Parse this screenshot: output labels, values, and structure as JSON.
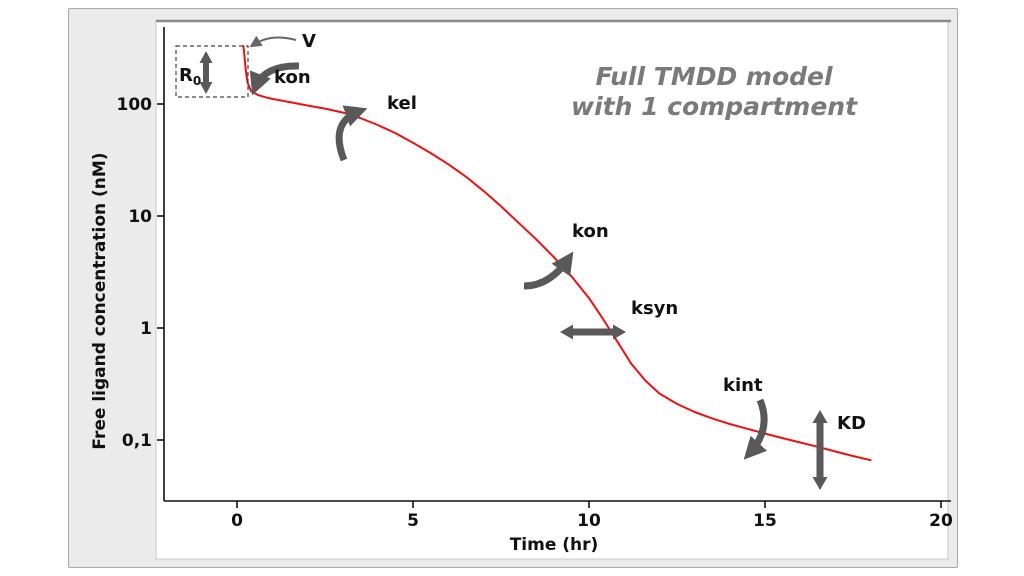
{
  "window": {
    "bg": "#ebebeb",
    "panel_bg": "#ffffff",
    "border": "#a8a8a8"
  },
  "title": {
    "line1": "Full TMDD model",
    "line2": "with 1 compartment",
    "color": "#7a7a7a"
  },
  "chart_data": {
    "type": "line",
    "title": "Full TMDD model with 1 compartment",
    "xlabel": "Time (hr)",
    "ylabel": "Free ligand concentration (nM)",
    "x_scale": "linear",
    "y_scale": "log",
    "xlim": [
      -2.1,
      20.3
    ],
    "ylim": [
      0.03,
      600
    ],
    "grid": false,
    "x_ticks": [
      {
        "v": 0,
        "label": "0"
      },
      {
        "v": 5,
        "label": "5"
      },
      {
        "v": 10,
        "label": "10"
      },
      {
        "v": 15,
        "label": "15"
      },
      {
        "v": 20,
        "label": "20"
      }
    ],
    "y_ticks": [
      {
        "v": 100,
        "label": "100"
      },
      {
        "v": 10,
        "label": "10"
      },
      {
        "v": 1,
        "label": "1"
      },
      {
        "v": 0.1,
        "label": "0,1"
      }
    ],
    "series": [
      {
        "name": "free-ligand-concentration",
        "color": "#ee1111",
        "points": [
          [
            0.18,
            330
          ],
          [
            0.2,
            300
          ],
          [
            0.22,
            252
          ],
          [
            0.25,
            200
          ],
          [
            0.3,
            155
          ],
          [
            0.4,
            130
          ],
          [
            0.6,
            120
          ],
          [
            0.8,
            115
          ],
          [
            1,
            111
          ],
          [
            1.5,
            104
          ],
          [
            2,
            97
          ],
          [
            2.5,
            91
          ],
          [
            3,
            84
          ],
          [
            3.5,
            75
          ],
          [
            4,
            65
          ],
          [
            4.5,
            55
          ],
          [
            5,
            45
          ],
          [
            5.5,
            36.5
          ],
          [
            6,
            29
          ],
          [
            6.5,
            22.5
          ],
          [
            7,
            16.8
          ],
          [
            7.5,
            12.2
          ],
          [
            8,
            8.7
          ],
          [
            8.5,
            6.2
          ],
          [
            9,
            4.3
          ],
          [
            9.5,
            2.9
          ],
          [
            10,
            1.85
          ],
          [
            10.4,
            1.2
          ],
          [
            10.8,
            0.76
          ],
          [
            11.2,
            0.48
          ],
          [
            11.6,
            0.34
          ],
          [
            12,
            0.26
          ],
          [
            12.5,
            0.21
          ],
          [
            13,
            0.178
          ],
          [
            13.5,
            0.156
          ],
          [
            14,
            0.139
          ],
          [
            14.5,
            0.126
          ],
          [
            15,
            0.114
          ],
          [
            15.5,
            0.104
          ],
          [
            16,
            0.095
          ],
          [
            16.5,
            0.087
          ],
          [
            17,
            0.079
          ],
          [
            17.5,
            0.072
          ],
          [
            18,
            0.066
          ]
        ]
      }
    ],
    "annotations": [
      {
        "id": "r0",
        "label": "R",
        "sub": "0",
        "kind": "dashed-box-with-vertical-double-arrow"
      },
      {
        "id": "v",
        "label": "V",
        "kind": "thin-pointer-arrow-to-initial-concentration"
      },
      {
        "id": "kon_initial",
        "label": "kon",
        "kind": "curved-arrow"
      },
      {
        "id": "kel",
        "label": "kel",
        "kind": "curved-arrow"
      },
      {
        "id": "kon_tmdd",
        "label": "kon",
        "kind": "curved-arrow"
      },
      {
        "id": "ksyn",
        "label": "ksyn",
        "kind": "horizontal-double-arrow"
      },
      {
        "id": "kint",
        "label": "kint",
        "kind": "curved-arrow"
      },
      {
        "id": "kd",
        "label": "KD",
        "kind": "vertical-double-arrow"
      }
    ],
    "annotation_arrow_color": "#595959",
    "annotation_label_color": "#111111",
    "axis_color": "#111111",
    "curve_color": "#ee1111"
  }
}
